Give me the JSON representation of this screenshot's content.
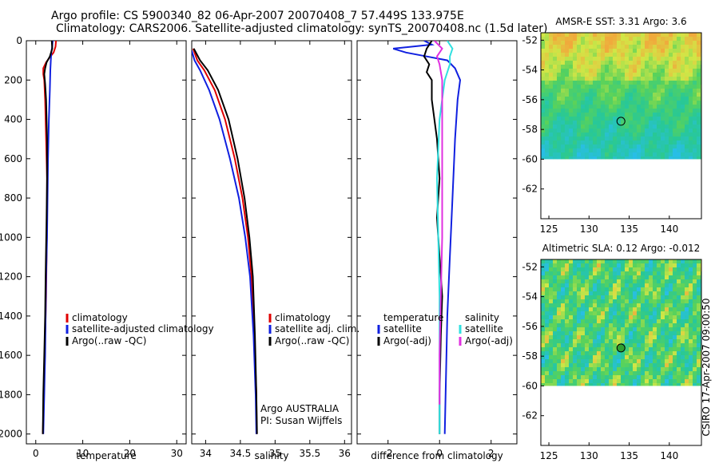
{
  "header": {
    "title_line1": "Argo profile: CS 5900340_82 06-Apr-2007 20070408_7 57.449S 133.975E",
    "title_line2": "Climatology: CARS2006. Satellite-adjusted climatology: synTS_20070408.nc (1.5d later)"
  },
  "footer": {
    "credit": "CSIRO 17-Apr-2007 09:00:50",
    "agency": "Argo AUSTRALIA",
    "pi": "PI: Susan Wijffels"
  },
  "colors": {
    "climatology": "#e00000",
    "satellite": "#1020e0",
    "argo": "#000000",
    "satellite_salinity": "#30e0e0",
    "argo_salinity": "#e030e0"
  },
  "chart_data": [
    {
      "id": "temperature",
      "type": "line",
      "xlabel": "temperature",
      "ylabel": "",
      "xlim": [
        -2,
        32
      ],
      "ylim": [
        2050,
        0
      ],
      "xticks": [
        0,
        10,
        20,
        30
      ],
      "yticks": [
        0,
        200,
        400,
        600,
        800,
        1000,
        1200,
        1400,
        1600,
        1800,
        2000
      ],
      "legend": {
        "location": "lower-right",
        "entries": [
          "climatology",
          "satellite-adjusted climatology",
          "Argo(..raw -QC)"
        ]
      },
      "series": [
        {
          "name": "climatology",
          "color": "#e00000",
          "x": [
            4.3,
            4.2,
            3.8,
            2.8,
            2.2,
            1.6,
            1.6,
            1.8,
            2.0,
            2.2,
            2.4,
            2.4,
            2.3,
            2.2,
            2.0,
            1.8,
            1.6,
            1.5
          ],
          "y": [
            0,
            30,
            60,
            90,
            110,
            140,
            170,
            200,
            300,
            500,
            700,
            900,
            1100,
            1300,
            1500,
            1700,
            1900,
            2000
          ]
        },
        {
          "name": "satellite-adjusted climatology",
          "color": "#1020e0",
          "x": [
            3.6,
            3.5,
            3.3,
            3.2,
            3.1,
            3.0,
            2.8,
            2.6,
            2.5,
            2.4,
            2.2,
            2.1,
            2.0,
            1.9,
            1.8,
            1.7,
            1.6
          ],
          "y": [
            0,
            30,
            60,
            100,
            150,
            250,
            400,
            600,
            800,
            1000,
            1200,
            1400,
            1600,
            1700,
            1800,
            1900,
            2000
          ]
        },
        {
          "name": "Argo(..raw -QC)",
          "color": "#000000",
          "x": [
            3.4,
            3.5,
            3.0,
            2.3,
            2.0,
            1.8,
            2.0,
            2.2,
            2.4,
            2.4,
            2.3,
            2.1,
            2.0,
            1.8,
            1.6,
            1.5
          ],
          "y": [
            0,
            40,
            80,
            110,
            140,
            170,
            220,
            300,
            500,
            700,
            900,
            1200,
            1400,
            1600,
            1800,
            2000
          ]
        }
      ]
    },
    {
      "id": "salinity",
      "type": "line",
      "xlabel": "salinity",
      "ylabel": "",
      "xlim": [
        33.8,
        36.1
      ],
      "ylim": [
        2050,
        0
      ],
      "xticks": [
        34,
        34.5,
        35,
        35.5,
        36
      ],
      "yticks": [],
      "legend": {
        "location": "lower-right",
        "entries": [
          "climatology",
          "satellite adj. clim.",
          "Argo(..raw -QC)"
        ]
      },
      "series": [
        {
          "name": "climatology",
          "color": "#e00000",
          "x": [
            33.82,
            33.88,
            33.98,
            34.13,
            34.28,
            34.42,
            34.53,
            34.61,
            34.66,
            34.7,
            34.73,
            34.735
          ],
          "y": [
            40,
            100,
            150,
            250,
            400,
            600,
            800,
            1000,
            1200,
            1500,
            1800,
            2000
          ]
        },
        {
          "name": "satellite adj. clim.",
          "color": "#1020e0",
          "x": [
            33.8,
            33.84,
            33.92,
            34.05,
            34.2,
            34.35,
            34.48,
            34.57,
            34.64,
            34.69,
            34.72,
            34.73
          ],
          "y": [
            50,
            100,
            150,
            250,
            400,
            600,
            800,
            1000,
            1200,
            1500,
            1800,
            2000
          ]
        },
        {
          "name": "Argo(..raw -QC)",
          "color": "#000000",
          "x": [
            33.83,
            33.92,
            34.03,
            34.18,
            34.33,
            34.46,
            34.56,
            34.63,
            34.68,
            34.71,
            34.73,
            34.74
          ],
          "y": [
            40,
            100,
            150,
            250,
            400,
            600,
            800,
            1000,
            1200,
            1500,
            1800,
            2000
          ]
        }
      ]
    },
    {
      "id": "difference",
      "type": "line",
      "xlabel": "difference from climatology",
      "ylabel": "",
      "xlim": [
        -3.2,
        3.0
      ],
      "ylim": [
        2050,
        0
      ],
      "xticks": [
        -2,
        0,
        2
      ],
      "yticks": [],
      "legend": {
        "location": "lower-left",
        "entries": [
          "temperature",
          "satellite",
          "Argo(-adj)",
          "salinity",
          "satellite",
          "Argo(-adj)"
        ]
      },
      "series": [
        {
          "name": "satellite",
          "group": "temperature",
          "color": "#1020e0",
          "x": [
            -0.6,
            -0.3,
            -1.8,
            -1.3,
            -0.5,
            0.3,
            0.6,
            0.8,
            0.7,
            0.6,
            0.5,
            0.4,
            0.3,
            0.25,
            0.2
          ],
          "y": [
            0,
            20,
            40,
            60,
            80,
            100,
            140,
            200,
            300,
            500,
            800,
            1100,
            1400,
            1700,
            2000
          ]
        },
        {
          "name": "Argo(-adj)",
          "group": "temperature",
          "color": "#000000",
          "x": [
            -0.3,
            -0.5,
            -0.6,
            -0.4,
            -0.5,
            -0.3,
            -0.3,
            -0.1,
            0.0,
            -0.1,
            0.0,
            0.1,
            0.05,
            0.0,
            0.0
          ],
          "y": [
            0,
            40,
            80,
            120,
            160,
            200,
            300,
            500,
            700,
            900,
            1100,
            1300,
            1500,
            1800,
            2000
          ]
        },
        {
          "name": "satellite",
          "group": "salinity",
          "color": "#30e0e0",
          "x": [
            0.3,
            0.5,
            0.4,
            0.4,
            0.2,
            0.0,
            -0.1,
            -0.05,
            0.0,
            0.0,
            0.0,
            0.0
          ],
          "y": [
            0,
            40,
            80,
            120,
            200,
            400,
            700,
            1000,
            1300,
            1600,
            1800,
            2000
          ]
        },
        {
          "name": "Argo(-adj)",
          "group": "salinity",
          "color": "#e030e0",
          "x": [
            -0.2,
            0.1,
            -0.1,
            0.0,
            0.1,
            0.1,
            0.1,
            0.1,
            0.05,
            0.0,
            0.0
          ],
          "y": [
            0,
            40,
            80,
            120,
            200,
            400,
            700,
            1000,
            1300,
            1600,
            1850
          ]
        }
      ]
    },
    {
      "id": "amsre_sst_map",
      "type": "heatmap",
      "title": "AMSR-E SST: 3.31 Argo: 3.6",
      "xlim": [
        124,
        144
      ],
      "ylim": [
        -64,
        -51.5
      ],
      "xticks": [
        125,
        130,
        135,
        140
      ],
      "yticks": [
        -52,
        -54,
        -56,
        -58,
        -60,
        -62
      ],
      "data_extent_lat": [
        -60,
        -51.5
      ],
      "marker": {
        "lon": 133.975,
        "lat": -57.449
      }
    },
    {
      "id": "altimetric_sla_map",
      "type": "heatmap",
      "title": "Altimetric SLA: 0.12 Argo: -0.012",
      "xlim": [
        124,
        144
      ],
      "ylim": [
        -64,
        -51.5
      ],
      "xticks": [
        125,
        130,
        135,
        140
      ],
      "yticks": [
        -52,
        -54,
        -56,
        -58,
        -60,
        -62
      ],
      "data_extent_lat": [
        -60,
        -51.5
      ],
      "marker": {
        "lon": 133.975,
        "lat": -57.449
      }
    }
  ]
}
